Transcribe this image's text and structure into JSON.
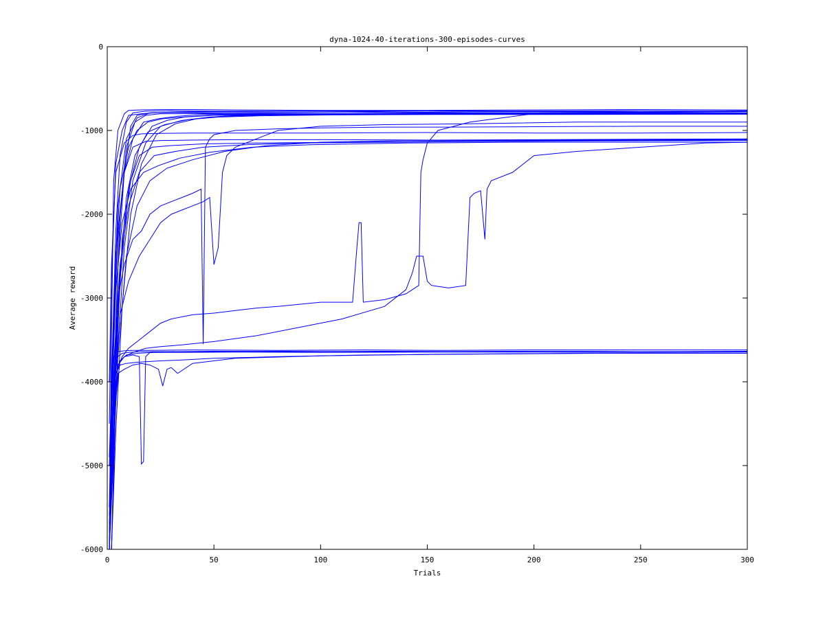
{
  "chart_data": {
    "type": "line",
    "title": "dyna-1024-40-iterations-300-episodes-curves",
    "xlabel": "Trials",
    "ylabel": "Average reward",
    "xlim": [
      0,
      300
    ],
    "ylim": [
      -6000,
      0
    ],
    "x_ticks": [
      0,
      50,
      100,
      150,
      200,
      250,
      300
    ],
    "y_ticks": [
      0,
      -1000,
      -2000,
      -3000,
      -4000,
      -5000,
      -6000
    ],
    "grid": false,
    "legend": "none",
    "line_color": "#0000ff",
    "series": [
      {
        "x": [
          1,
          2,
          3,
          5,
          8,
          10,
          15,
          25,
          40,
          60,
          100,
          150,
          200,
          250,
          300
        ],
        "y": [
          -6000,
          -3500,
          -1600,
          -1000,
          -800,
          -760,
          -755,
          -750,
          -750,
          -755,
          -760,
          -760,
          -755,
          -750,
          -755
        ]
      },
      {
        "x": [
          1,
          2,
          4,
          6,
          9,
          12,
          18,
          30,
          50,
          80,
          120,
          180,
          240,
          300
        ],
        "y": [
          -5500,
          -4000,
          -2200,
          -1300,
          -900,
          -790,
          -770,
          -765,
          -770,
          -770,
          -765,
          -770,
          -765,
          -770
        ]
      },
      {
        "x": [
          1,
          3,
          5,
          8,
          11,
          14,
          20,
          35,
          60,
          100,
          150,
          200,
          250,
          300
        ],
        "y": [
          -6000,
          -4800,
          -2600,
          -1500,
          -950,
          -820,
          -790,
          -780,
          -775,
          -770,
          -780,
          -775,
          -780,
          -775
        ]
      },
      {
        "x": [
          1,
          2,
          4,
          7,
          10,
          16,
          22,
          30,
          45,
          70,
          110,
          170,
          230,
          300
        ],
        "y": [
          -4500,
          -2800,
          -1400,
          -1000,
          -820,
          -800,
          -790,
          -785,
          -790,
          -785,
          -780,
          -790,
          -785,
          -790
        ]
      },
      {
        "x": [
          2,
          4,
          6,
          9,
          13,
          18,
          25,
          40,
          70,
          120,
          180,
          240,
          300
        ],
        "y": [
          -5200,
          -3300,
          -2000,
          -1200,
          -900,
          -820,
          -800,
          -800,
          -795,
          -800,
          -795,
          -800,
          -800
        ]
      },
      {
        "x": [
          1,
          3,
          6,
          10,
          15,
          21,
          28,
          36,
          50,
          80,
          130,
          190,
          250,
          300
        ],
        "y": [
          -6000,
          -4200,
          -2800,
          -1700,
          -1200,
          -950,
          -880,
          -840,
          -820,
          -810,
          -800,
          -805,
          -800,
          -800
        ]
      },
      {
        "x": [
          1,
          2,
          5,
          8,
          12,
          17,
          24,
          33,
          45,
          60,
          90,
          140,
          200,
          260,
          300
        ],
        "y": [
          -5800,
          -3900,
          -2300,
          -1500,
          -1100,
          -900,
          -860,
          -830,
          -810,
          -805,
          -800,
          -795,
          -800,
          -795,
          -800
        ]
      },
      {
        "x": [
          2,
          4,
          7,
          11,
          16,
          23,
          32,
          42,
          55,
          75,
          110,
          160,
          220,
          300
        ],
        "y": [
          -6000,
          -4600,
          -3100,
          -2000,
          -1400,
          -1050,
          -920,
          -860,
          -830,
          -815,
          -810,
          -805,
          -805,
          -805
        ]
      },
      {
        "x": [
          1,
          3,
          5,
          9,
          14,
          20,
          30,
          45,
          65,
          100,
          150,
          210,
          270,
          300
        ],
        "y": [
          -4900,
          -3200,
          -1900,
          -1100,
          -850,
          -790,
          -780,
          -775,
          -770,
          -770,
          -765,
          -770,
          -770,
          -765
        ]
      },
      {
        "x": [
          1,
          2,
          4,
          6,
          10,
          14,
          19,
          26,
          35,
          48,
          66,
          100,
          160,
          230,
          300
        ],
        "y": [
          -6000,
          -4400,
          -2500,
          -1700,
          -1200,
          -1000,
          -900,
          -860,
          -840,
          -820,
          -810,
          -800,
          -795,
          -790,
          -790
        ]
      },
      {
        "x": [
          2,
          5,
          8,
          12,
          18,
          25,
          35,
          48,
          62,
          85,
          125,
          185,
          245,
          300
        ],
        "y": [
          -5300,
          -3600,
          -2400,
          -1600,
          -1150,
          -950,
          -880,
          -840,
          -820,
          -810,
          -800,
          -800,
          -795,
          -795
        ]
      },
      {
        "x": [
          1,
          3,
          6,
          9,
          13,
          19,
          27,
          38,
          52,
          72,
          105,
          155,
          215,
          275,
          300
        ],
        "y": [
          -5700,
          -4100,
          -2700,
          -1800,
          -1300,
          -1020,
          -930,
          -870,
          -840,
          -825,
          -815,
          -810,
          -810,
          -805,
          -805
        ]
      },
      {
        "x": [
          1,
          2,
          4,
          8,
          12,
          16,
          25,
          40,
          60,
          100,
          150,
          200,
          250,
          300
        ],
        "y": [
          -4000,
          -2600,
          -1500,
          -1150,
          -1060,
          -1040,
          -1035,
          -1030,
          -1030,
          -1030,
          -1025,
          -1030,
          -1030,
          -1025
        ]
      },
      {
        "x": [
          1,
          3,
          5,
          8,
          12,
          18,
          25,
          40,
          60,
          100,
          150,
          200,
          250,
          300
        ],
        "y": [
          -5000,
          -3300,
          -2200,
          -1500,
          -1200,
          -1130,
          -1120,
          -1115,
          -1110,
          -1110,
          -1115,
          -1110,
          -1105,
          -1100
        ]
      },
      {
        "x": [
          2,
          4,
          7,
          11,
          15,
          21,
          30,
          45,
          70,
          110,
          160,
          220,
          280,
          300
        ],
        "y": [
          -6000,
          -3900,
          -2300,
          -1600,
          -1300,
          -1200,
          -1180,
          -1160,
          -1150,
          -1140,
          -1130,
          -1120,
          -1115,
          -1110
        ]
      },
      {
        "x": [
          1,
          3,
          6,
          10,
          15,
          22,
          32,
          45,
          65,
          90,
          130,
          180,
          230,
          300
        ],
        "y": [
          -5600,
          -3800,
          -2600,
          -1900,
          -1500,
          -1300,
          -1250,
          -1200,
          -1170,
          -1150,
          -1140,
          -1130,
          -1125,
          -1120
        ]
      },
      {
        "x": [
          1,
          2,
          4,
          7,
          11,
          17,
          24,
          34,
          48,
          68,
          95,
          140,
          190,
          250,
          300
        ],
        "y": [
          -6000,
          -4300,
          -2900,
          -2100,
          -1700,
          -1500,
          -1420,
          -1330,
          -1260,
          -1200,
          -1170,
          -1150,
          -1140,
          -1140,
          -1140
        ]
      },
      {
        "x": [
          2,
          5,
          9,
          14,
          20,
          28,
          40,
          55,
          75,
          100,
          140,
          190,
          250,
          300
        ],
        "y": [
          -5400,
          -3700,
          -2500,
          -1900,
          -1600,
          -1450,
          -1350,
          -1250,
          -1180,
          -1140,
          -1120,
          -1120,
          -1110,
          -1110
        ]
      },
      {
        "x": [
          1,
          3,
          5,
          8,
          12,
          16,
          20,
          25,
          30,
          35,
          40,
          44,
          45,
          46,
          48,
          50,
          60,
          80,
          100,
          130,
          160,
          200,
          250,
          300
        ],
        "y": [
          -6000,
          -4000,
          -3000,
          -2600,
          -2300,
          -2200,
          -2000,
          -1900,
          -1850,
          -1800,
          -1750,
          -1700,
          -3550,
          -1200,
          -1100,
          -1050,
          -1000,
          -980,
          -970,
          -960,
          -960,
          -955,
          -950,
          -950
        ]
      },
      {
        "x": [
          1,
          3,
          6,
          10,
          15,
          20,
          25,
          30,
          35,
          40,
          45,
          48,
          50,
          52,
          54,
          56,
          60,
          70,
          80,
          100,
          130,
          170,
          220,
          300
        ],
        "y": [
          -6000,
          -4200,
          -3200,
          -2800,
          -2500,
          -2300,
          -2100,
          -2000,
          -1950,
          -1900,
          -1850,
          -1800,
          -2600,
          -2400,
          -1500,
          -1300,
          -1200,
          -1100,
          -1000,
          -950,
          -930,
          -920,
          -900,
          -900
        ]
      },
      {
        "x": [
          1,
          2,
          4,
          7,
          10,
          15,
          20,
          25,
          30,
          40,
          50,
          60,
          70,
          80,
          100,
          115,
          117,
          118,
          119,
          120,
          130,
          140,
          146,
          147,
          148,
          150,
          155,
          170,
          200,
          250,
          300
        ],
        "y": [
          -6000,
          -4500,
          -3900,
          -3700,
          -3600,
          -3500,
          -3400,
          -3300,
          -3250,
          -3200,
          -3180,
          -3150,
          -3120,
          -3100,
          -3050,
          -3050,
          -2400,
          -2100,
          -2100,
          -3050,
          -3020,
          -2950,
          -2850,
          -1500,
          -1350,
          -1150,
          -1000,
          -900,
          -800,
          -790,
          -790
        ]
      },
      {
        "x": [
          1,
          3,
          5,
          8,
          12,
          18,
          25,
          35,
          50,
          70,
          90,
          110,
          130,
          140,
          143,
          145,
          146,
          148,
          150,
          152,
          160,
          168,
          170,
          172,
          175,
          177,
          178,
          180,
          190,
          200,
          220,
          250,
          280,
          300
        ],
        "y": [
          -6000,
          -4400,
          -3800,
          -3700,
          -3650,
          -3600,
          -3580,
          -3560,
          -3520,
          -3450,
          -3350,
          -3250,
          -3100,
          -2900,
          -2700,
          -2500,
          -2500,
          -2500,
          -2800,
          -2850,
          -2880,
          -2850,
          -1800,
          -1750,
          -1720,
          -2300,
          -1700,
          -1600,
          -1500,
          -1300,
          -1250,
          -1200,
          -1150,
          -1140
        ]
      },
      {
        "x": [
          1,
          2,
          3,
          5,
          8,
          12,
          20,
          40,
          80,
          120,
          160,
          200,
          250,
          300
        ],
        "y": [
          -6000,
          -4300,
          -3700,
          -3640,
          -3630,
          -3625,
          -3625,
          -3620,
          -3625,
          -3620,
          -3625,
          -3620,
          -3620,
          -3620
        ]
      },
      {
        "x": [
          1,
          3,
          5,
          7,
          10,
          15,
          25,
          50,
          90,
          130,
          170,
          210,
          260,
          300
        ],
        "y": [
          -5500,
          -4000,
          -3700,
          -3660,
          -3650,
          -3640,
          -3640,
          -3635,
          -3640,
          -3635,
          -3640,
          -3635,
          -3640,
          -3635
        ]
      },
      {
        "x": [
          2,
          4,
          6,
          9,
          14,
          22,
          35,
          60,
          100,
          150,
          200,
          250,
          300
        ],
        "y": [
          -6000,
          -4200,
          -3750,
          -3680,
          -3660,
          -3650,
          -3650,
          -3645,
          -3650,
          -3645,
          -3645,
          -3650,
          -3645
        ]
      },
      {
        "x": [
          1,
          2,
          4,
          6,
          9,
          13,
          18,
          25,
          35,
          50,
          80,
          120,
          170,
          230,
          300
        ],
        "y": [
          -6000,
          -4800,
          -3900,
          -3800,
          -3780,
          -3770,
          -3760,
          -3750,
          -3740,
          -3720,
          -3700,
          -3680,
          -3670,
          -3660,
          -3660
        ]
      },
      {
        "x": [
          1,
          3,
          5,
          8,
          12,
          16,
          20,
          24,
          26,
          28,
          30,
          33,
          40,
          60,
          100,
          160,
          220,
          300
        ],
        "y": [
          -6000,
          -4600,
          -3900,
          -3850,
          -3800,
          -3780,
          -3800,
          -3850,
          -4050,
          -3850,
          -3830,
          -3900,
          -3780,
          -3720,
          -3690,
          -3670,
          -3660,
          -3660
        ]
      },
      {
        "x": [
          1,
          3,
          5,
          8,
          12,
          15,
          16,
          17,
          18,
          20,
          25,
          40,
          80,
          140,
          200,
          260,
          300
        ],
        "y": [
          -6000,
          -4300,
          -3800,
          -3700,
          -3680,
          -3700,
          -4980,
          -4950,
          -3700,
          -3650,
          -3640,
          -3640,
          -3635,
          -3640,
          -3635,
          -3640,
          -3640
        ]
      }
    ]
  }
}
